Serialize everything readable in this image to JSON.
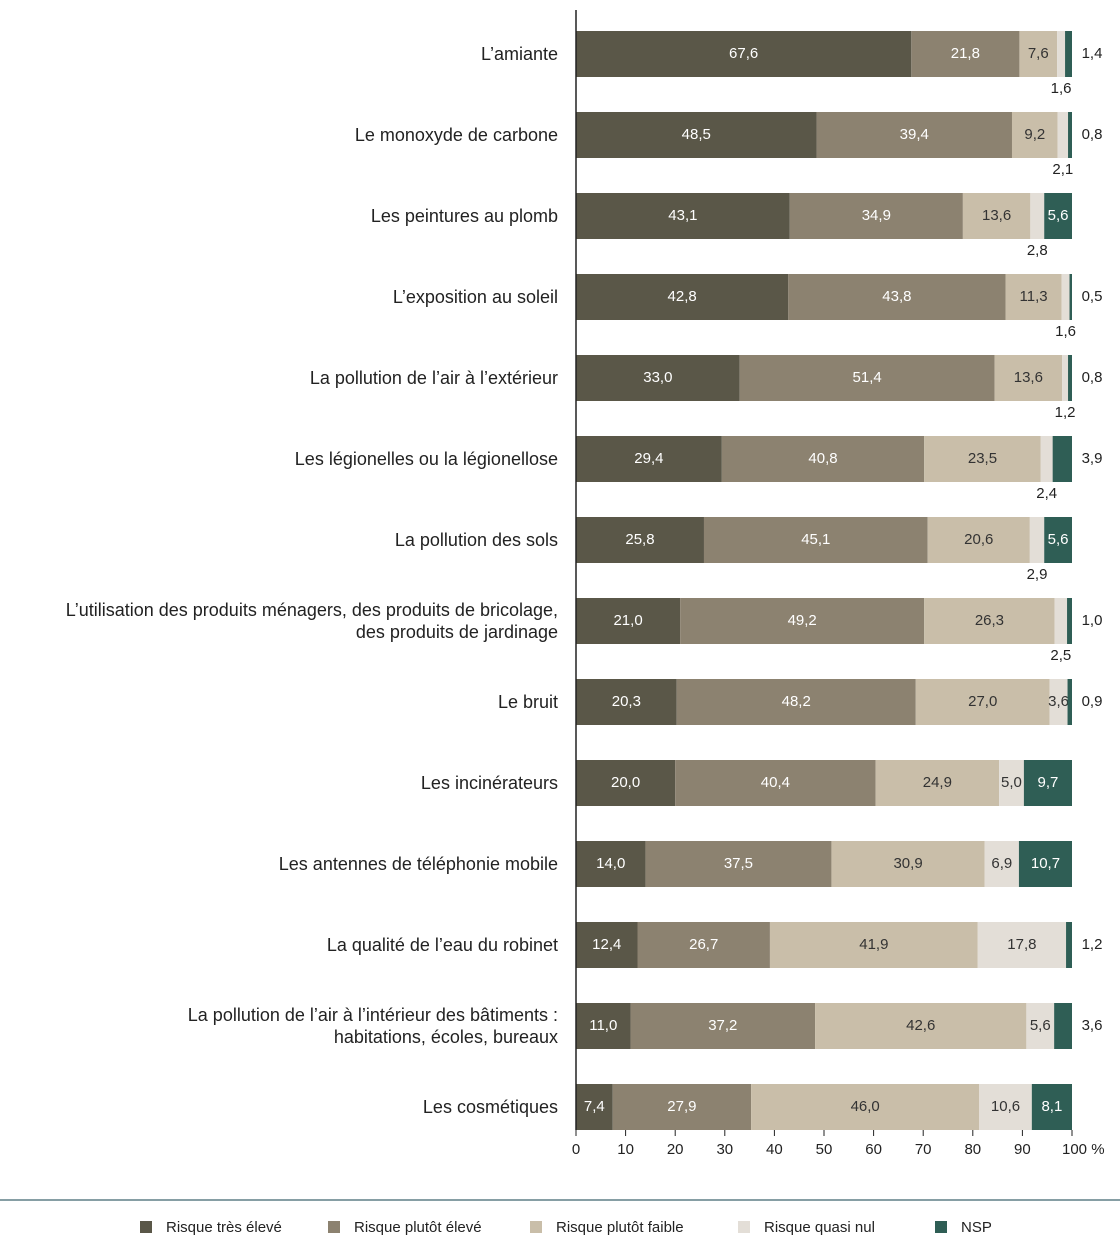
{
  "chart_data": {
    "type": "stacked_barh",
    "categories": [
      "L’amiante",
      "Le monoxyde de carbone",
      "Les peintures au plomb",
      "L’exposition au soleil",
      "La pollution de l’air à l’extérieur",
      "Les légionelles ou la légionellose",
      "La pollution des sols",
      "L’utilisation des produits ménagers, des produits de bricolage,\ndes produits de jardinage",
      "Le bruit",
      "Les incinérateurs",
      "Les antennes de téléphonie mobile",
      "La qualité de l’eau du robinet",
      "La pollution de l’air à l’intérieur des bâtiments :\nhabitations, écoles, bureaux",
      "Les cosmétiques"
    ],
    "series": [
      {
        "name": "Risque très élevé",
        "color": "#5a5748",
        "values": [
          67.6,
          48.5,
          43.1,
          42.8,
          33.0,
          29.4,
          25.8,
          21.0,
          20.3,
          20.0,
          14.0,
          12.4,
          11.0,
          7.4
        ],
        "value_labels": [
          "67,6",
          "48,5",
          "43,1",
          "42,8",
          "33,0",
          "29,4",
          "25,8",
          "21,0",
          "20,3",
          "20,0",
          "14,0",
          "12,4",
          "11,0",
          "7,4"
        ]
      },
      {
        "name": "Risque plutôt élevé",
        "color": "#8c8270",
        "values": [
          21.8,
          39.4,
          34.9,
          43.8,
          51.4,
          40.8,
          45.1,
          49.2,
          48.2,
          40.4,
          37.5,
          26.7,
          37.2,
          27.9
        ],
        "value_labels": [
          "21,8",
          "39,4",
          "34,9",
          "43,8",
          "51,4",
          "40,8",
          "45,1",
          "49,2",
          "48,2",
          "40,4",
          "37,5",
          "26,7",
          "37,2",
          "27,9"
        ]
      },
      {
        "name": "Risque plutôt faible",
        "color": "#c9bea9",
        "values": [
          7.6,
          9.2,
          13.6,
          11.3,
          13.6,
          23.5,
          20.6,
          26.3,
          27.0,
          24.9,
          30.9,
          41.9,
          42.6,
          46.0
        ],
        "value_labels": [
          "7,6",
          "9,2",
          "13,6",
          "11,3",
          "13,6",
          "23,5",
          "20,6",
          "26,3",
          "27,0",
          "24,9",
          "30,9",
          "41,9",
          "42,6",
          "46,0"
        ]
      },
      {
        "name": "Risque quasi nul",
        "color": "#e3ded7",
        "values": [
          1.6,
          2.1,
          2.8,
          1.6,
          1.2,
          2.4,
          2.9,
          2.5,
          3.6,
          5.0,
          6.9,
          17.8,
          5.6,
          10.6
        ],
        "value_labels": [
          "1,6",
          "2,1",
          "2,8",
          "1,6",
          "1,2",
          "2,4",
          "2,9",
          "2,5",
          "3,6",
          "5,0",
          "6,9",
          "17,8",
          "5,6",
          "10,6"
        ]
      },
      {
        "name": "NSP",
        "color": "#2f5e55",
        "values": [
          1.4,
          0.8,
          5.6,
          0.5,
          0.8,
          3.9,
          5.6,
          1.0,
          0.9,
          9.7,
          10.7,
          1.2,
          3.6,
          8.1
        ],
        "value_labels": [
          "1,4",
          "0,8",
          "5,6",
          "0,5",
          "0,8",
          "3,9",
          "5,6",
          "1,0",
          "0,9",
          "9,7",
          "10,7",
          "1,2",
          "3,6",
          "8,1"
        ]
      }
    ],
    "xlim": [
      0,
      100
    ],
    "xticks": [
      0,
      10,
      20,
      30,
      40,
      50,
      60,
      70,
      80,
      90,
      {
        "value": 100,
        "label": "100 %"
      }
    ]
  }
}
